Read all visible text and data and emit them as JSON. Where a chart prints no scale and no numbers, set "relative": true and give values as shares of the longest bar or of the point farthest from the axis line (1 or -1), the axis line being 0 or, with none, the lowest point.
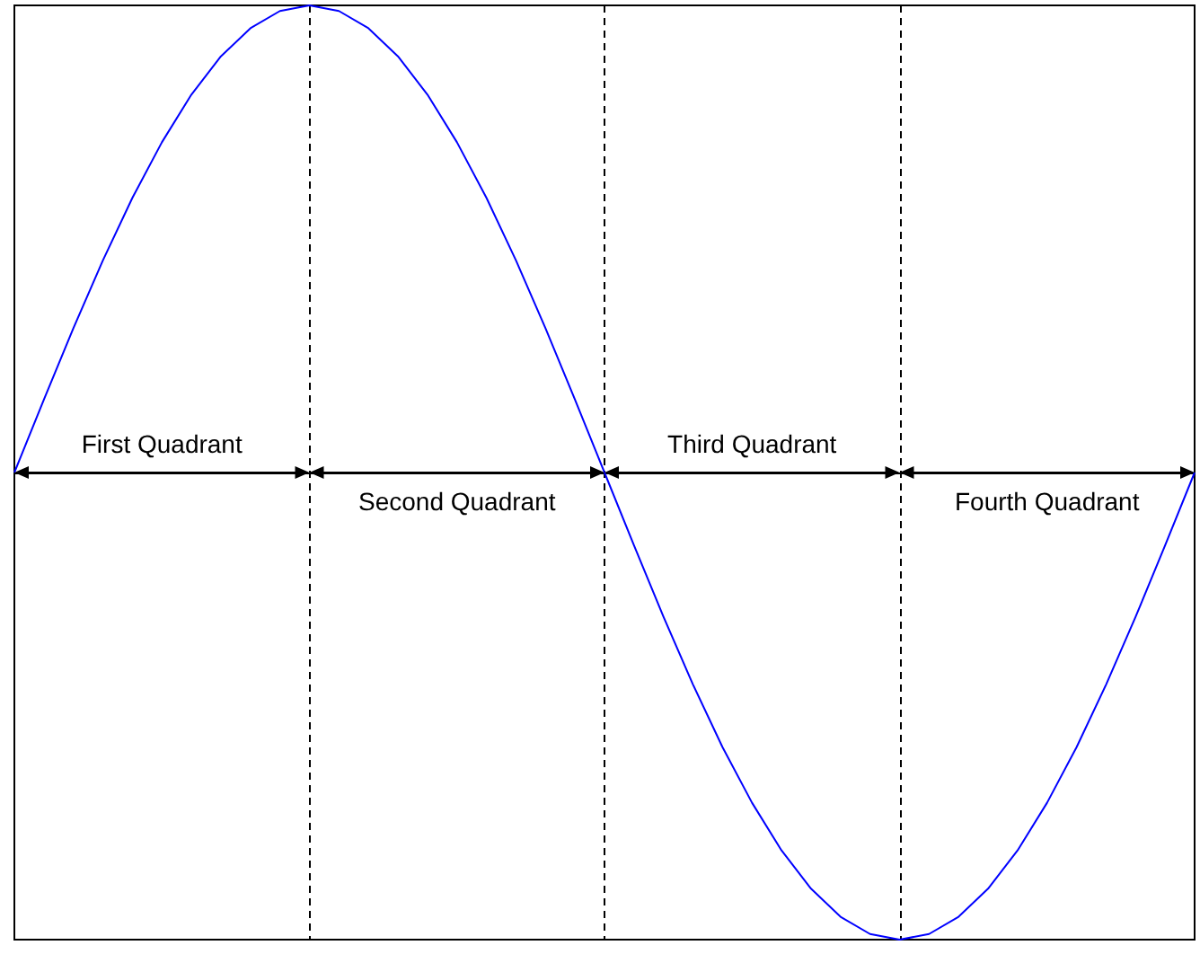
{
  "chart_data": {
    "type": "line",
    "relative": true,
    "categories": [
      null,
      null,
      null,
      null,
      null,
      null,
      null,
      null,
      null,
      null,
      null,
      null,
      null,
      null,
      null,
      null,
      null,
      null,
      null,
      null,
      null,
      null,
      null,
      null,
      null,
      null,
      null,
      null,
      null,
      null,
      null,
      null,
      null,
      null,
      null,
      null,
      null,
      null,
      null,
      null,
      null
    ],
    "series": [
      {
        "color": "#0000ff",
        "values": [
          0,
          0.156,
          0.309,
          0.454,
          0.588,
          0.707,
          0.809,
          0.891,
          0.951,
          0.988,
          1,
          0.988,
          0.951,
          0.891,
          0.809,
          0.707,
          0.588,
          0.454,
          0.309,
          0.156,
          0,
          -0.156,
          -0.309,
          -0.454,
          -0.588,
          -0.707,
          -0.809,
          -0.891,
          -0.951,
          -0.988,
          -1,
          -0.988,
          -0.951,
          -0.891,
          -0.809,
          -0.707,
          -0.588,
          -0.454,
          -0.309,
          -0.156,
          0
        ]
      }
    ],
    "annotations": [
      "First Quadrant",
      "Second Quadrant",
      "Third Quadrant",
      "Fourth Quadrant"
    ],
    "marker": "none",
    "line_style": "solid",
    "grid": "x"
  }
}
